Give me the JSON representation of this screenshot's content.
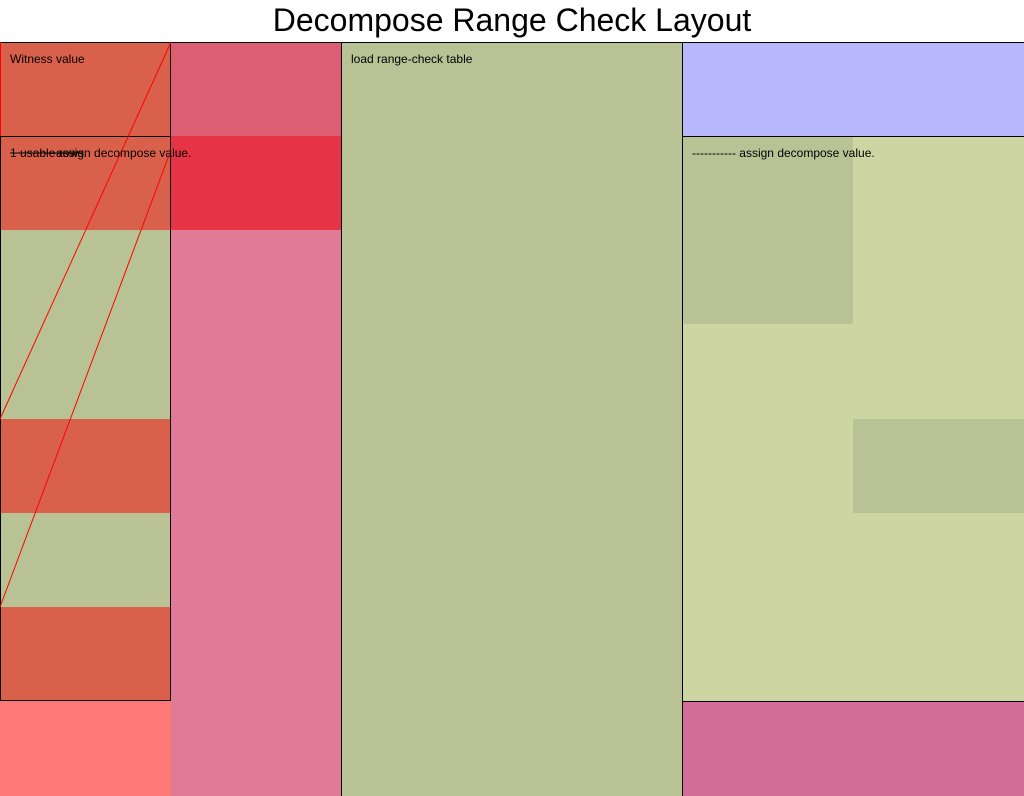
{
  "title": "Decompose Range Check Layout",
  "regions": {
    "witness": {
      "label": "Witness value",
      "color": "#d9614c"
    },
    "usable_rows": {
      "label": "1 usable rows",
      "color": "#d9614c"
    },
    "assign_decompose_left": {
      "label": "assign decompose value.",
      "color": "#e63446"
    },
    "load_table": {
      "label": "load range-check table",
      "color": "#b8c295"
    },
    "assign_decompose_right": {
      "label": "----------- assign decompose value.",
      "color": "#cdd6a2"
    }
  },
  "colors": {
    "witness_red": "#d9614c",
    "assign_red": "#e63446",
    "column_pink": "#e07a96",
    "top_pink": "#dd5e73",
    "olive": "#b8c295",
    "olive_light": "#cdd6a2",
    "lavender": "#b8b8ff",
    "salmon": "#ff7878",
    "magenta_pink": "#d46c98",
    "border": "#000000",
    "diagonal": "#ff0000"
  }
}
